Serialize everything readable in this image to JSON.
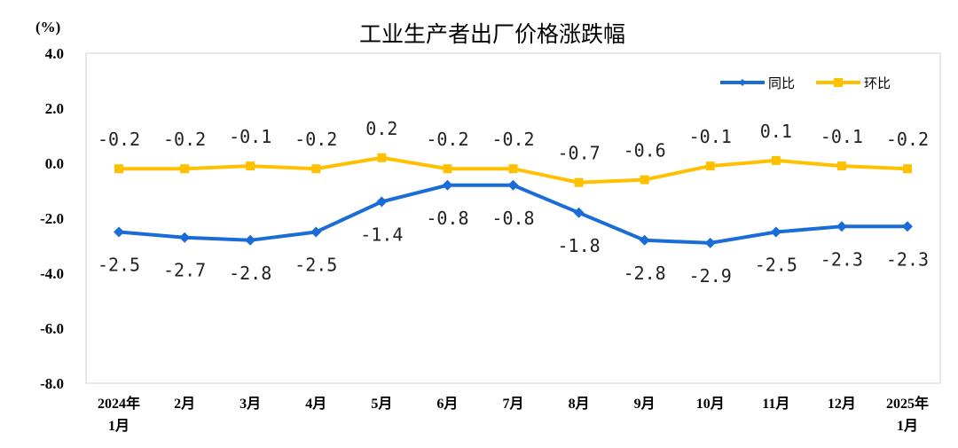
{
  "chart_data": {
    "type": "line",
    "title": "工业生产者出厂价格涨跌幅",
    "ylabel": "(%)",
    "xlabel": "",
    "ylim": [
      -8.0,
      4.0
    ],
    "yticks": [
      "4.0",
      "2.0",
      "0.0",
      "-2.0",
      "-4.0",
      "-6.0",
      "-8.0"
    ],
    "ytick_values": [
      4,
      2,
      0,
      -2,
      -4,
      -6,
      -8
    ],
    "categories": [
      [
        "2024年",
        "1月"
      ],
      [
        "2月"
      ],
      [
        "3月"
      ],
      [
        "4月"
      ],
      [
        "5月"
      ],
      [
        "6月"
      ],
      [
        "7月"
      ],
      [
        "8月"
      ],
      [
        "9月"
      ],
      [
        "10月"
      ],
      [
        "11月"
      ],
      [
        "12月"
      ],
      [
        "2025年",
        "1月"
      ]
    ],
    "legend_position": "top-right",
    "grid": false,
    "series": [
      {
        "name": "同比",
        "color": "#1a6dd6",
        "marker": "diamond",
        "label_position": "below",
        "values": [
          -2.5,
          -2.7,
          -2.8,
          -2.5,
          -1.4,
          -0.8,
          -0.8,
          -1.8,
          -2.8,
          -2.9,
          -2.5,
          -2.3,
          -2.3
        ],
        "labels": [
          "-2.5",
          "-2.7",
          "-2.8",
          "-2.5",
          "-1.4",
          "-0.8",
          "-0.8",
          "-1.8",
          "-2.8",
          "-2.9",
          "-2.5",
          "-2.3",
          "-2.3"
        ]
      },
      {
        "name": "环比",
        "color": "#ffc000",
        "marker": "square",
        "label_position": "above",
        "values": [
          -0.2,
          -0.2,
          -0.1,
          -0.2,
          0.2,
          -0.2,
          -0.2,
          -0.7,
          -0.6,
          -0.1,
          0.1,
          -0.1,
          -0.2
        ],
        "labels": [
          "-0.2",
          "-0.2",
          "-0.1",
          "-0.2",
          "0.2",
          "-0.2",
          "-0.2",
          "-0.7",
          "-0.6",
          "-0.1",
          "0.1",
          "-0.1",
          "-0.2"
        ]
      }
    ]
  }
}
